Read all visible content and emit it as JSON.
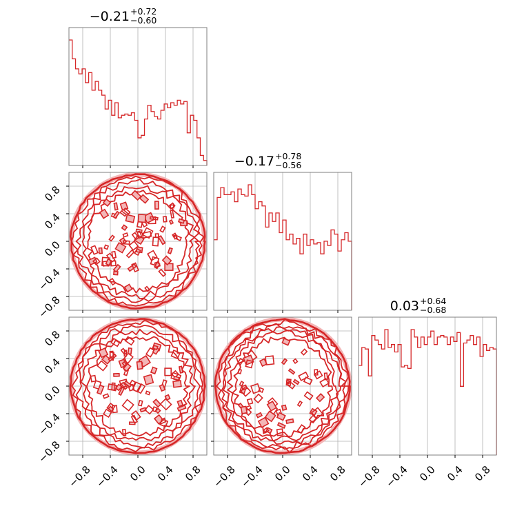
{
  "colors": {
    "series": "#d62728",
    "fill_light": "#f3b6b7",
    "grid": "#b0b0b0",
    "axes": "#7f7f7f"
  },
  "chart_data": {
    "type": "corner",
    "grid": true,
    "parameters": 3,
    "axis_ticks": [
      "−0.8",
      "−0.4",
      "0.0",
      "0.4",
      "0.8"
    ],
    "tick_values": [
      -0.8,
      -0.4,
      0.0,
      0.4,
      0.8
    ],
    "xlim": [
      -1.0,
      1.0
    ],
    "ylim": [
      -1.0,
      1.0
    ],
    "titles": [
      {
        "median": "−0.21",
        "plus": "+0.72",
        "minus": "−0.60"
      },
      {
        "median": "−0.17",
        "plus": "+0.78",
        "minus": "−0.56"
      },
      {
        "median": "0.03",
        "plus": "+0.64",
        "minus": "−0.68"
      }
    ],
    "histograms": [
      {
        "param": 1,
        "bin_range": [
          -1.0,
          1.0
        ],
        "counts": [
          1.0,
          0.85,
          0.77,
          0.73,
          0.77,
          0.66,
          0.74,
          0.6,
          0.67,
          0.6,
          0.56,
          0.45,
          0.52,
          0.4,
          0.5,
          0.38,
          0.4,
          0.41,
          0.4,
          0.42,
          0.36,
          0.22,
          0.24,
          0.37,
          0.48,
          0.43,
          0.39,
          0.37,
          0.44,
          0.49,
          0.46,
          0.5,
          0.48,
          0.52,
          0.49,
          0.51,
          0.26,
          0.4,
          0.36,
          0.22,
          0.08,
          0.04
        ]
      },
      {
        "param": 2,
        "bin_range": [
          -1.0,
          1.0
        ],
        "counts": [
          0.5,
          0.8,
          0.87,
          0.82,
          0.82,
          0.84,
          0.77,
          0.86,
          0.82,
          0.81,
          0.89,
          0.82,
          0.72,
          0.77,
          0.74,
          0.59,
          0.69,
          0.63,
          0.69,
          0.55,
          0.64,
          0.5,
          0.54,
          0.47,
          0.51,
          0.4,
          0.54,
          0.46,
          0.5,
          0.47,
          0.48,
          0.4,
          0.49,
          0.46,
          0.57,
          0.54,
          0.42,
          0.5,
          0.55,
          0.49
        ]
      },
      {
        "param": 3,
        "bin_range": [
          -1.0,
          1.0
        ],
        "counts": [
          0.6,
          0.72,
          0.71,
          0.53,
          0.8,
          0.77,
          0.74,
          0.71,
          0.84,
          0.72,
          0.74,
          0.69,
          0.74,
          0.59,
          0.6,
          0.58,
          0.84,
          0.79,
          0.72,
          0.79,
          0.74,
          0.79,
          0.83,
          0.74,
          0.79,
          0.8,
          0.79,
          0.74,
          0.79,
          0.76,
          0.82,
          0.46,
          0.75,
          0.77,
          0.8,
          0.74,
          0.79,
          0.66,
          0.74,
          0.7,
          0.72,
          0.71
        ]
      }
    ],
    "contours": [
      {
        "x_param": 1,
        "y_param": 2,
        "support": "unit disk"
      },
      {
        "x_param": 1,
        "y_param": 3,
        "support": "unit disk"
      },
      {
        "x_param": 2,
        "y_param": 3,
        "support": "unit disk"
      }
    ]
  }
}
